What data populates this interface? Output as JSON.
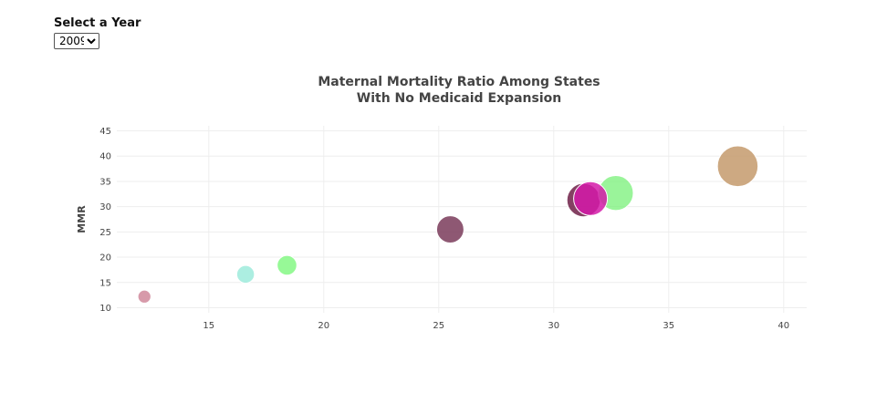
{
  "controls": {
    "year_label": "Select a Year",
    "year_selected": "2009",
    "year_options": [
      "2009"
    ]
  },
  "chart_data": {
    "type": "scatter",
    "title_lines": [
      "Maternal Mortality Ratio Among States",
      "With No Medicaid Expansion"
    ],
    "xlabel": "",
    "ylabel": "MMR",
    "xlim": [
      11,
      41
    ],
    "ylim": [
      9,
      46
    ],
    "x_ticks": [
      15,
      20,
      25,
      30,
      35,
      40
    ],
    "y_ticks": [
      10,
      15,
      20,
      25,
      30,
      35,
      40,
      45
    ],
    "grid": true,
    "points": [
      {
        "x": 12.2,
        "y": 12.2,
        "size": 12.2,
        "color": "#c9788e",
        "opacity": 0.75
      },
      {
        "x": 16.6,
        "y": 16.6,
        "size": 16.6,
        "color": "#97ead9",
        "opacity": 0.8
      },
      {
        "x": 18.4,
        "y": 18.4,
        "size": 18.4,
        "color": "#7df77d",
        "opacity": 0.8
      },
      {
        "x": 25.5,
        "y": 25.5,
        "size": 25.5,
        "color": "#7a3b5a",
        "opacity": 0.85
      },
      {
        "x": 31.3,
        "y": 31.3,
        "size": 31.3,
        "color": "#6e2048",
        "opacity": 0.85
      },
      {
        "x": 32.7,
        "y": 32.7,
        "size": 32.7,
        "color": "#78f078",
        "opacity": 0.75
      },
      {
        "x": 31.6,
        "y": 31.6,
        "size": 31.6,
        "color": "#d31aa8",
        "opacity": 0.85
      },
      {
        "x": 38.0,
        "y": 38.0,
        "size": 38.0,
        "color": "#c49a6c",
        "opacity": 0.85
      }
    ]
  }
}
